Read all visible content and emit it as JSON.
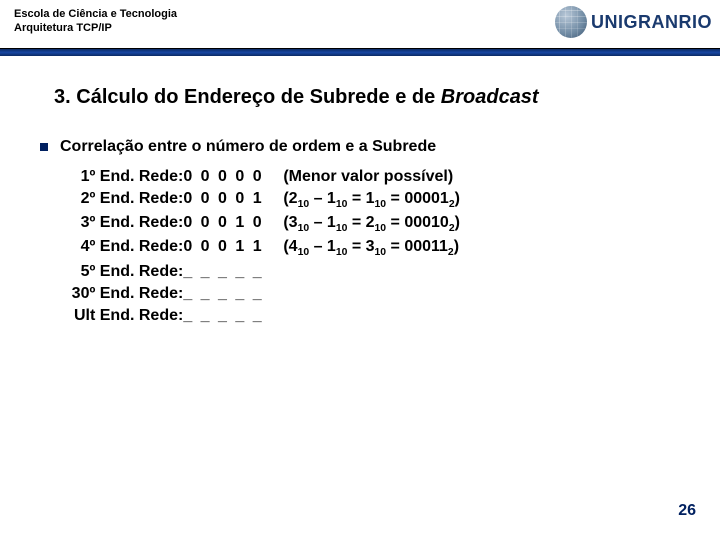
{
  "header": {
    "school": "Escola de Ciência e Tecnologia",
    "course": "Arquitetura TCP/IP",
    "brand": "UNIGRANRIO"
  },
  "title": {
    "number": "3.",
    "text": "Cálculo do Endereço de Subrede e de ",
    "italic": "Broadcast"
  },
  "bullet": "Correlação entre o número de ordem e a Subrede",
  "rows": [
    {
      "label": "1º End. Rede",
      "bits": "0 0 0 0 0",
      "expl": "(Menor valor possível)"
    },
    {
      "label": "2º End. Rede",
      "bits": "0 0 0 0 1",
      "expl": "(2₁₀ – 1₁₀ = 1₁₀ = 00001₂)"
    },
    {
      "label": "3º End. Rede",
      "bits": "0 0 0 1 0",
      "expl": "(3₁₀ – 1₁₀ = 2₁₀ = 00010₂)"
    },
    {
      "label": "4º End. Rede",
      "bits": "0 0 0 1 1",
      "expl": "(4₁₀ – 1₁₀ = 3₁₀ = 00011₂)"
    },
    {
      "label": "5º End. Rede",
      "bits": "_ _ _ _ _",
      "expl": ""
    },
    {
      "label": "30º End. Rede",
      "bits": "_ _ _ _ _",
      "expl": ""
    },
    {
      "label": "Ult End. Rede",
      "bits": "_ _ _ _ _",
      "expl": ""
    }
  ],
  "page": "26",
  "colors": {
    "divider": "#1846a3",
    "accent": "#002060",
    "text": "#000000",
    "bg": "#ffffff"
  }
}
